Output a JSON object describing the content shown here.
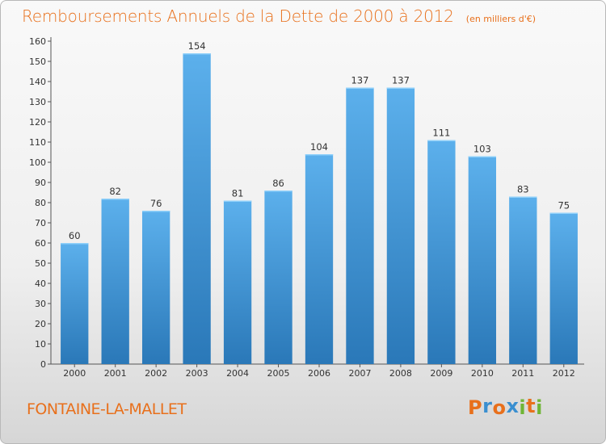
{
  "header": {
    "title": "Remboursements Annuels de la Dette de 2000 à 2012",
    "subtitle": "(en milliers d'€)"
  },
  "footer": {
    "place": "FONTAINE-LA-MALLET",
    "logo": "Proxiti"
  },
  "colors": {
    "title": "#e8701c",
    "bar_top": "#5cb0ec",
    "bar_bottom": "#2a78b8",
    "logo": [
      "#e8701c",
      "#3a8fd0",
      "#e8701c",
      "#3a8fd0",
      "#6fb536",
      "#e8701c",
      "#6fb536"
    ]
  },
  "chart_data": {
    "type": "bar",
    "categories": [
      "2000",
      "2001",
      "2002",
      "2003",
      "2004",
      "2005",
      "2006",
      "2007",
      "2008",
      "2009",
      "2010",
      "2011",
      "2012"
    ],
    "values": [
      60,
      82,
      76,
      154,
      81,
      86,
      104,
      137,
      137,
      111,
      103,
      83,
      75
    ],
    "title": "Remboursements Annuels de la Dette de 2000 à 2012",
    "subtitle": "(en milliers d'€)",
    "xlabel": "",
    "ylabel": "",
    "ylim": [
      0,
      160
    ],
    "yticks": [
      0,
      10,
      20,
      30,
      40,
      50,
      60,
      70,
      80,
      90,
      100,
      110,
      120,
      130,
      140,
      150,
      160
    ],
    "grid": false,
    "data_labels": true
  }
}
